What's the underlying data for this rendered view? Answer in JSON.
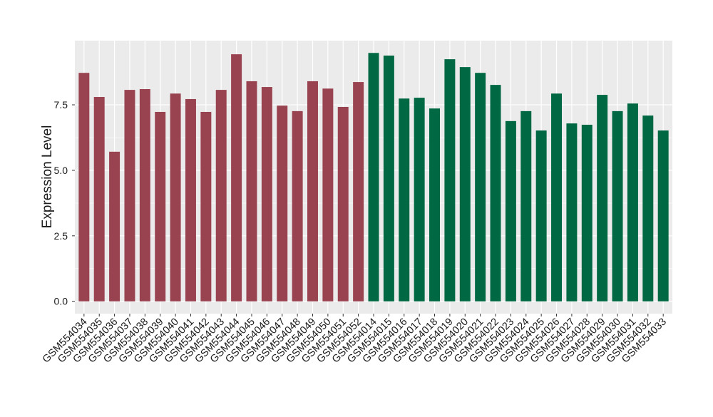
{
  "chart_data": {
    "type": "bar",
    "y_label": "Expression Level",
    "categories": [
      "GSM554034",
      "GSM554035",
      "GSM554036",
      "GSM554037",
      "GSM554038",
      "GSM554039",
      "GSM554040",
      "GSM554041",
      "GSM554042",
      "GSM554043",
      "GSM554044",
      "GSM554045",
      "GSM554046",
      "GSM554047",
      "GSM554048",
      "GSM554049",
      "GSM554050",
      "GSM554051",
      "GSM554052",
      "GSM554014",
      "GSM554015",
      "GSM554016",
      "GSM554017",
      "GSM554018",
      "GSM554019",
      "GSM554020",
      "GSM554021",
      "GSM554022",
      "GSM554023",
      "GSM554024",
      "GSM554025",
      "GSM554026",
      "GSM554027",
      "GSM554028",
      "GSM554029",
      "GSM554030",
      "GSM554031",
      "GSM554032",
      "GSM554033"
    ],
    "values": [
      8.72,
      7.8,
      5.71,
      8.07,
      8.1,
      7.23,
      7.93,
      7.72,
      7.23,
      8.07,
      9.43,
      8.4,
      8.18,
      7.47,
      7.26,
      8.4,
      8.12,
      7.42,
      8.37,
      9.48,
      9.38,
      7.74,
      7.77,
      7.36,
      9.24,
      8.94,
      8.72,
      8.26,
      6.88,
      7.26,
      6.52,
      7.93,
      6.79,
      6.74,
      7.88,
      7.26,
      7.55,
      7.09,
      6.52
    ],
    "colors": [
      "#9a4350",
      "#9a4350",
      "#9a4350",
      "#9a4350",
      "#9a4350",
      "#9a4350",
      "#9a4350",
      "#9a4350",
      "#9a4350",
      "#9a4350",
      "#9a4350",
      "#9a4350",
      "#9a4350",
      "#9a4350",
      "#9a4350",
      "#9a4350",
      "#9a4350",
      "#9a4350",
      "#9a4350",
      "#006843",
      "#006843",
      "#006843",
      "#006843",
      "#006843",
      "#006843",
      "#006843",
      "#006843",
      "#006843",
      "#006843",
      "#006843",
      "#006843",
      "#006843",
      "#006843",
      "#006843",
      "#006843",
      "#006843",
      "#006843",
      "#006843",
      "#006843"
    ],
    "ylim": [
      -0.47,
      9.95
    ],
    "yticks": [
      {
        "value": 0,
        "label": "0.0"
      },
      2.5,
      {
        "value": 5,
        "label": "5.0"
      },
      7.5
    ],
    "grid": true
  }
}
